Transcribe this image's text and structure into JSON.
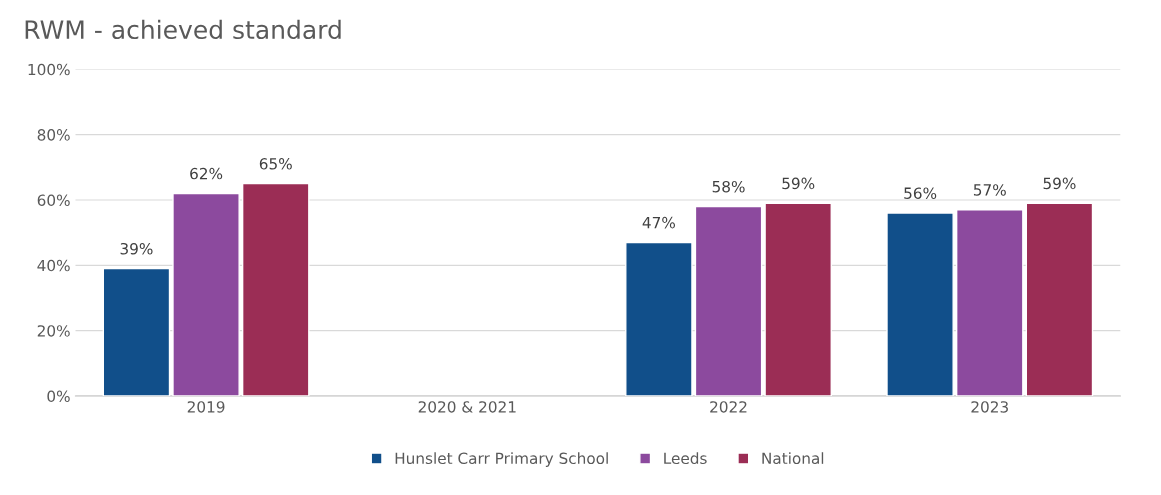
{
  "chart_data": {
    "type": "bar",
    "title": "RWM - achieved standard",
    "categories": [
      "2019",
      "2020 & 2021",
      "2022",
      "2023"
    ],
    "series": [
      {
        "name": "Hunslet Carr Primary School",
        "color": "#114f8a",
        "values": [
          39,
          null,
          47,
          56
        ],
        "value_labels": [
          "39%",
          null,
          "47%",
          "56%"
        ]
      },
      {
        "name": "Leeds",
        "color": "#8c4a9e",
        "values": [
          62,
          null,
          58,
          57
        ],
        "value_labels": [
          "62%",
          null,
          "58%",
          "57%"
        ]
      },
      {
        "name": "National",
        "color": "#9b2d55",
        "values": [
          65,
          null,
          59,
          59
        ],
        "value_labels": [
          "65%",
          null,
          "59%",
          "59%"
        ]
      }
    ],
    "ylim": [
      0,
      100
    ],
    "yticks": [
      {
        "value": 0,
        "label": "0%"
      },
      {
        "value": 20,
        "label": "20%"
      },
      {
        "value": 40,
        "label": "40%"
      },
      {
        "value": 60,
        "label": "60%"
      },
      {
        "value": 80,
        "label": "80%"
      },
      {
        "value": 100,
        "label": "100%"
      }
    ],
    "grid": "y",
    "legend": "bottom"
  }
}
